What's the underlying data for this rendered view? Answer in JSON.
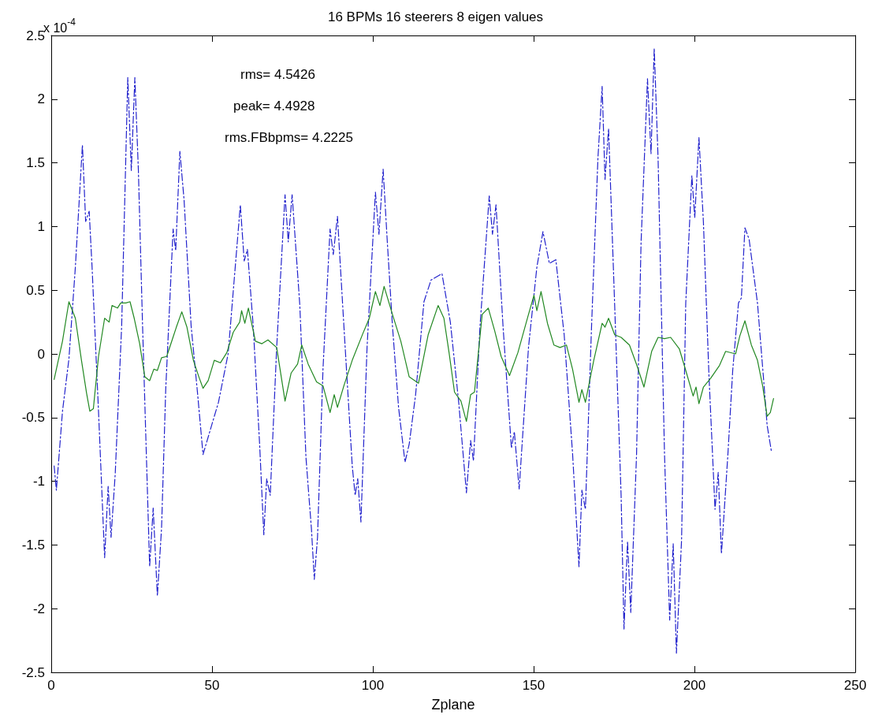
{
  "chart_data": {
    "type": "line",
    "title": "16 BPMs 16 steerers 8 eigen values",
    "xlabel": "Zplane",
    "annotations": [
      "x 10$^{-4}$",
      "rms= 4.5426",
      "peak= 4.4928",
      "rms.FBbpms= 4.2225"
    ],
    "xlim": [
      0,
      250
    ],
    "xticks": [
      0,
      50,
      100,
      150,
      200,
      250
    ],
    "ylim": [
      -2.5,
      2.5
    ],
    "yticks": [
      -2.5,
      -2,
      -1.5,
      -1,
      -0.5,
      0,
      0.5,
      1,
      1.5,
      2,
      2.5
    ],
    "grid": false,
    "marker": "none",
    "series": [
      {
        "color": "#2222cc",
        "line_style": "dashdot",
        "x": [
          0.9,
          1.6,
          3.5,
          5.5,
          7.5,
          9.7,
          10.7,
          11.8,
          12.7,
          14.7,
          16.6,
          17.7,
          18.6,
          19.9,
          21.9,
          23.8,
          24.9,
          26,
          27.1,
          28.4,
          30.6,
          31.7,
          33,
          34.3,
          35.6,
          37.9,
          38.7,
          40,
          41.3,
          43.5,
          45.5,
          47.2,
          50,
          52,
          55,
          58.8,
          60,
          61,
          62.8,
          64.8,
          66.1,
          67,
          68.1,
          70.1,
          72.7,
          73.7,
          74.9,
          77.3,
          79.2,
          80.1,
          80.9,
          81.8,
          82.8,
          84.5,
          86.7,
          87.7,
          89,
          91,
          93.6,
          94.5,
          95.3,
          96.3,
          98.2,
          100.8,
          101.9,
          103.2,
          104.5,
          106.1,
          108,
          110,
          111.3,
          113.3,
          115.9,
          118.1,
          121.5,
          124.1,
          126.7,
          129.1,
          130.4,
          131.3,
          133.3,
          136.2,
          137.2,
          138.3,
          140.5,
          143.1,
          144,
          145.5,
          148.4,
          151,
          152.9,
          154.9,
          156.9,
          159.5,
          162.1,
          164.1,
          165,
          166.1,
          168,
          170,
          171.3,
          172.2,
          173.3,
          175.2,
          177.2,
          178.1,
          179.2,
          180.2,
          182,
          183.4,
          185.4,
          186.5,
          187.5,
          188.7,
          190.7,
          192.3,
          193.4,
          194.4,
          196,
          197.3,
          199.2,
          200.1,
          201.4,
          202.8,
          204.5,
          206.4,
          207.4,
          208.4,
          210.4,
          211.9,
          213.7,
          214.6,
          215.7,
          217,
          219.6,
          221.6,
          222.6,
          223.9
        ],
        "values": [
          -0.88,
          -1.07,
          -0.45,
          -0.04,
          0.68,
          1.64,
          1.04,
          1.12,
          0.68,
          -0.45,
          -1.6,
          -1.04,
          -1.44,
          -0.94,
          0.22,
          2.17,
          1.44,
          2.17,
          1.44,
          0.22,
          -1.67,
          -1.21,
          -1.9,
          -1.37,
          -0.28,
          0.98,
          0.81,
          1.59,
          1.21,
          0.22,
          -0.31,
          -0.79,
          -0.55,
          -0.38,
          0.0,
          1.17,
          0.73,
          0.82,
          0.22,
          -0.71,
          -1.42,
          -0.98,
          -1.11,
          0.05,
          1.25,
          0.88,
          1.25,
          0.38,
          -0.81,
          -1.11,
          -1.37,
          -1.77,
          -1.44,
          -0.12,
          0.98,
          0.78,
          1.08,
          0.22,
          -0.88,
          -1.11,
          -0.98,
          -1.32,
          0.05,
          1.27,
          0.94,
          1.45,
          0.88,
          0.22,
          -0.42,
          -0.85,
          -0.71,
          -0.32,
          0.41,
          0.58,
          0.63,
          0.25,
          -0.38,
          -1.09,
          -0.68,
          -0.84,
          0.21,
          1.24,
          0.94,
          1.17,
          0.21,
          -0.74,
          -0.61,
          -1.06,
          0.05,
          0.68,
          0.96,
          0.71,
          0.74,
          0.15,
          -0.78,
          -1.67,
          -1.07,
          -1.22,
          0.21,
          1.54,
          2.1,
          1.37,
          1.77,
          0.38,
          -1.11,
          -2.16,
          -1.47,
          -2.03,
          -0.79,
          0.87,
          2.16,
          1.57,
          2.4,
          1.53,
          -0.79,
          -2.09,
          -1.49,
          -2.35,
          -1.46,
          0.4,
          1.4,
          1.07,
          1.7,
          1.03,
          -0.16,
          -1.22,
          -0.93,
          -1.57,
          -0.79,
          -0.13,
          0.4,
          0.44,
          0.99,
          0.9,
          0.4,
          -0.23,
          -0.56,
          -0.76
        ]
      },
      {
        "color": "#228822",
        "line_style": "solid",
        "x": [
          0.9,
          3.5,
          5.5,
          7.5,
          9.4,
          11,
          12,
          13.1,
          14.7,
          16.6,
          18,
          18.9,
          20.6,
          21.6,
          23.2,
          24.5,
          25.8,
          27.5,
          29.1,
          30.6,
          31.9,
          33,
          34.3,
          35.9,
          37.6,
          38.9,
          40.6,
          42.2,
          44.2,
          45.9,
          47.2,
          48.8,
          50.7,
          52.6,
          54.6,
          56.6,
          58.6,
          59.2,
          60.2,
          61.3,
          63.5,
          65.5,
          67.4,
          70.1,
          72.7,
          74.6,
          76.6,
          77.9,
          79.9,
          82.5,
          84.5,
          86.7,
          88,
          89,
          91,
          93.6,
          96.9,
          98.9,
          100.8,
          102.2,
          103.5,
          106.1,
          108.7,
          111.3,
          114.2,
          117.2,
          120.3,
          122.1,
          123.7,
          125.4,
          127.4,
          129.1,
          130.4,
          131.6,
          134,
          135.9,
          137.9,
          139.9,
          142.5,
          145.1,
          148.4,
          150.1,
          151,
          152.3,
          154.3,
          156.3,
          158.2,
          160.2,
          162.1,
          164.1,
          165,
          166.1,
          168.7,
          171.3,
          172.2,
          173.3,
          175.2,
          177.2,
          179.8,
          182.1,
          184.3,
          186.7,
          188.7,
          190.7,
          192.6,
          195.3,
          197.3,
          199.6,
          200.5,
          201.4,
          202.8,
          205.1,
          207.8,
          209.7,
          212.8,
          214.1,
          215.7,
          217.7,
          219.6,
          221.2,
          222.6,
          223.6,
          224.6
        ],
        "values": [
          -0.2,
          0.1,
          0.41,
          0.28,
          -0.05,
          -0.31,
          -0.45,
          -0.43,
          -0.02,
          0.28,
          0.25,
          0.38,
          0.36,
          0.4,
          0.4,
          0.41,
          0.28,
          0.08,
          -0.18,
          -0.21,
          -0.12,
          -0.13,
          -0.03,
          -0.02,
          0.11,
          0.21,
          0.33,
          0.21,
          -0.05,
          -0.18,
          -0.27,
          -0.21,
          -0.05,
          -0.07,
          0.01,
          0.17,
          0.25,
          0.34,
          0.24,
          0.36,
          0.1,
          0.08,
          0.11,
          0.05,
          -0.37,
          -0.15,
          -0.08,
          0.07,
          -0.08,
          -0.22,
          -0.25,
          -0.46,
          -0.32,
          -0.42,
          -0.25,
          -0.05,
          0.16,
          0.28,
          0.49,
          0.38,
          0.53,
          0.31,
          0.1,
          -0.18,
          -0.23,
          0.15,
          0.38,
          0.28,
          0.01,
          -0.3,
          -0.37,
          -0.53,
          -0.32,
          -0.3,
          0.31,
          0.36,
          0.18,
          -0.02,
          -0.17,
          0.01,
          0.31,
          0.46,
          0.34,
          0.49,
          0.24,
          0.07,
          0.05,
          0.07,
          -0.12,
          -0.38,
          -0.28,
          -0.38,
          -0.05,
          0.24,
          0.21,
          0.28,
          0.15,
          0.13,
          0.07,
          -0.09,
          -0.26,
          0.02,
          0.13,
          0.12,
          0.13,
          0.04,
          -0.13,
          -0.33,
          -0.26,
          -0.39,
          -0.26,
          -0.19,
          -0.09,
          0.02,
          0.0,
          0.14,
          0.26,
          0.07,
          -0.05,
          -0.25,
          -0.49,
          -0.46,
          -0.35
        ]
      }
    ]
  }
}
